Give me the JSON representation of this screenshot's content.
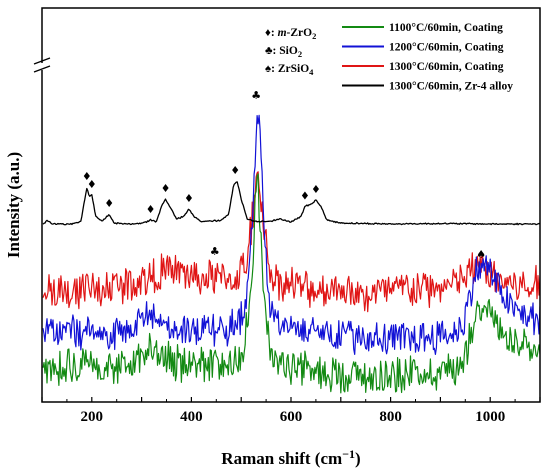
{
  "chart_data": {
    "type": "line",
    "title": "",
    "xlabel_main": "Raman shift (cm",
    "xlabel_sup": "−1",
    "xlabel_tail": ")",
    "ylabel": "Intensity (a.u.)",
    "xlim": [
      100,
      1100
    ],
    "xticks": [
      200,
      400,
      600,
      800,
      1000
    ],
    "legend_position": "top-right",
    "key": [
      {
        "symbol": "♦",
        "prefix": ": ",
        "italic": "m",
        "text": "-ZrO",
        "sub": "2"
      },
      {
        "symbol": "♣",
        "prefix": ": ",
        "italic": "",
        "text": "SiO",
        "sub": "2"
      },
      {
        "symbol": "♠",
        "prefix": ": ",
        "italic": "",
        "text": "ZrSiO",
        "sub": "4"
      }
    ],
    "series": [
      {
        "name": "1100°C/60min, Coating",
        "color": "#138a13",
        "points": [
          [
            105,
            -0.05
          ],
          [
            150,
            0.1
          ],
          [
            200,
            0.02
          ],
          [
            250,
            0.05
          ],
          [
            280,
            0.08
          ],
          [
            300,
            0.3
          ],
          [
            315,
            0.45
          ],
          [
            330,
            0.25
          ],
          [
            360,
            0.12
          ],
          [
            400,
            0.08
          ],
          [
            450,
            0.05
          ],
          [
            480,
            0.12
          ],
          [
            500,
            0.3
          ],
          [
            515,
            1.0
          ],
          [
            525,
            2.5
          ],
          [
            530,
            3.85
          ],
          [
            535,
            3.6
          ],
          [
            540,
            2.4
          ],
          [
            550,
            0.8
          ],
          [
            560,
            0.3
          ],
          [
            575,
            0.12
          ],
          [
            600,
            0.05
          ],
          [
            650,
            -0.05
          ],
          [
            700,
            -0.1
          ],
          [
            750,
            -0.15
          ],
          [
            800,
            -0.12
          ],
          [
            850,
            -0.08
          ],
          [
            900,
            -0.05
          ],
          [
            930,
            0.0
          ],
          [
            950,
            0.3
          ],
          [
            970,
            1.1
          ],
          [
            985,
            1.35
          ],
          [
            1000,
            1.15
          ],
          [
            1020,
            0.75
          ],
          [
            1050,
            0.45
          ],
          [
            1100,
            0.28
          ]
        ]
      },
      {
        "name": "1200°C/60min, Coating",
        "color": "#1212d6",
        "points": [
          [
            105,
            0.75
          ],
          [
            150,
            0.75
          ],
          [
            200,
            0.68
          ],
          [
            250,
            0.68
          ],
          [
            280,
            0.75
          ],
          [
            300,
            1.05
          ],
          [
            315,
            1.1
          ],
          [
            330,
            0.98
          ],
          [
            360,
            0.85
          ],
          [
            400,
            0.78
          ],
          [
            450,
            0.78
          ],
          [
            480,
            0.85
          ],
          [
            500,
            1.05
          ],
          [
            515,
            1.8
          ],
          [
            525,
            3.5
          ],
          [
            532,
            5.25
          ],
          [
            538,
            4.9
          ],
          [
            545,
            2.8
          ],
          [
            555,
            1.3
          ],
          [
            570,
            0.95
          ],
          [
            600,
            0.85
          ],
          [
            650,
            0.8
          ],
          [
            700,
            0.7
          ],
          [
            750,
            0.65
          ],
          [
            800,
            0.6
          ],
          [
            850,
            0.62
          ],
          [
            900,
            0.68
          ],
          [
            930,
            0.7
          ],
          [
            950,
            1.05
          ],
          [
            970,
            1.9
          ],
          [
            985,
            2.1
          ],
          [
            1000,
            1.95
          ],
          [
            1020,
            1.55
          ],
          [
            1050,
            1.15
          ],
          [
            1100,
            0.95
          ]
        ]
      },
      {
        "name": "1300°C/60min, Coating",
        "color": "#e01515",
        "points": [
          [
            105,
            1.55
          ],
          [
            150,
            1.55
          ],
          [
            200,
            1.62
          ],
          [
            250,
            1.68
          ],
          [
            280,
            1.72
          ],
          [
            310,
            1.82
          ],
          [
            340,
            1.92
          ],
          [
            360,
            1.95
          ],
          [
            380,
            1.92
          ],
          [
            400,
            1.85
          ],
          [
            420,
            1.78
          ],
          [
            440,
            1.85
          ],
          [
            460,
            1.8
          ],
          [
            490,
            1.8
          ],
          [
            510,
            2.1
          ],
          [
            525,
            3.2
          ],
          [
            535,
            3.9
          ],
          [
            545,
            3.0
          ],
          [
            555,
            2.0
          ],
          [
            575,
            1.75
          ],
          [
            600,
            1.7
          ],
          [
            650,
            1.55
          ],
          [
            680,
            1.6
          ],
          [
            700,
            1.65
          ],
          [
            745,
            1.45
          ],
          [
            780,
            1.55
          ],
          [
            820,
            1.62
          ],
          [
            860,
            1.6
          ],
          [
            900,
            1.62
          ],
          [
            940,
            1.75
          ],
          [
            960,
            1.95
          ],
          [
            975,
            2.05
          ],
          [
            990,
            2.0
          ],
          [
            1010,
            1.85
          ],
          [
            1040,
            1.7
          ],
          [
            1070,
            1.62
          ],
          [
            1100,
            1.72
          ]
        ]
      },
      {
        "name": "1300°C/60min, Zr-4 alloy",
        "color": "#000000",
        "points": [
          [
            105,
            2.9
          ],
          [
            110,
            2.98
          ],
          [
            120,
            2.9
          ],
          [
            160,
            2.9
          ],
          [
            178,
            2.95
          ],
          [
            190,
            3.62
          ],
          [
            195,
            3.45
          ],
          [
            200,
            3.48
          ],
          [
            208,
            3.05
          ],
          [
            220,
            2.95
          ],
          [
            235,
            3.1
          ],
          [
            245,
            2.92
          ],
          [
            280,
            2.9
          ],
          [
            305,
            2.92
          ],
          [
            318,
            2.98
          ],
          [
            330,
            2.95
          ],
          [
            340,
            3.25
          ],
          [
            348,
            3.4
          ],
          [
            355,
            3.28
          ],
          [
            370,
            3.0
          ],
          [
            385,
            3.05
          ],
          [
            395,
            3.2
          ],
          [
            405,
            3.05
          ],
          [
            420,
            2.95
          ],
          [
            460,
            2.97
          ],
          [
            475,
            3.1
          ],
          [
            485,
            3.7
          ],
          [
            492,
            3.75
          ],
          [
            500,
            3.4
          ],
          [
            512,
            3.0
          ],
          [
            530,
            2.95
          ],
          [
            560,
            2.96
          ],
          [
            580,
            3.0
          ],
          [
            600,
            2.94
          ],
          [
            620,
            3.05
          ],
          [
            628,
            3.25
          ],
          [
            640,
            3.3
          ],
          [
            650,
            3.38
          ],
          [
            660,
            3.25
          ],
          [
            672,
            2.98
          ],
          [
            700,
            2.92
          ],
          [
            800,
            2.9
          ],
          [
            900,
            2.91
          ],
          [
            1000,
            2.9
          ],
          [
            1100,
            2.9
          ]
        ]
      }
    ],
    "annotations": [
      {
        "symbol": "♦",
        "x": 190,
        "y": 3.78
      },
      {
        "symbol": "♦",
        "x": 200,
        "y": 3.62
      },
      {
        "symbol": "♦",
        "x": 235,
        "y": 3.24
      },
      {
        "symbol": "♦",
        "x": 318,
        "y": 3.12
      },
      {
        "symbol": "♦",
        "x": 348,
        "y": 3.54
      },
      {
        "symbol": "♦",
        "x": 395,
        "y": 3.34
      },
      {
        "symbol": "♦",
        "x": 488,
        "y": 3.9
      },
      {
        "symbol": "♦",
        "x": 628,
        "y": 3.39
      },
      {
        "symbol": "♦",
        "x": 650,
        "y": 3.52
      },
      {
        "symbol": "♣",
        "x": 530,
        "y": 5.4
      },
      {
        "symbol": "♣",
        "x": 447,
        "y": 2.28
      },
      {
        "symbol": "♠",
        "x": 982,
        "y": 2.22
      }
    ]
  }
}
